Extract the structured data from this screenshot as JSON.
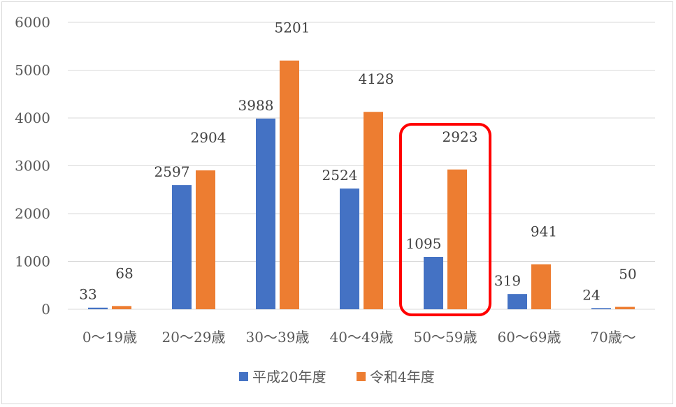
{
  "chart_data": {
    "type": "bar",
    "categories": [
      "0～19歳",
      "20～29歳",
      "30～39歳",
      "40～49歳",
      "50～59歳",
      "60～69歳",
      "70歳～"
    ],
    "series": [
      {
        "name": "平成20年度",
        "color": "#4472c4",
        "values": [
          33,
          2597,
          3988,
          2524,
          1095,
          319,
          24
        ]
      },
      {
        "name": "令和4年度",
        "color": "#ed7d31",
        "values": [
          68,
          2904,
          5201,
          4128,
          2923,
          941,
          50
        ]
      }
    ],
    "ylim": [
      0,
      6000
    ],
    "yticks": [
      0,
      1000,
      2000,
      3000,
      4000,
      5000,
      6000
    ],
    "grid": true,
    "legend_position": "bottom",
    "highlight": {
      "category": "50～59歳",
      "color": "#ff0000"
    }
  }
}
